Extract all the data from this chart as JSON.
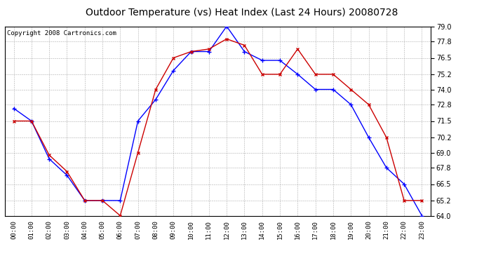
{
  "title": "Outdoor Temperature (vs) Heat Index (Last 24 Hours) 20080728",
  "copyright": "Copyright 2008 Cartronics.com",
  "hours": [
    "00:00",
    "01:00",
    "02:00",
    "03:00",
    "04:00",
    "05:00",
    "06:00",
    "07:00",
    "08:00",
    "09:00",
    "10:00",
    "11:00",
    "12:00",
    "13:00",
    "14:00",
    "15:00",
    "16:00",
    "17:00",
    "18:00",
    "19:00",
    "20:00",
    "21:00",
    "22:00",
    "23:00"
  ],
  "blue_temp": [
    72.5,
    71.5,
    68.5,
    67.2,
    65.2,
    65.2,
    65.2,
    71.5,
    73.2,
    75.5,
    77.0,
    77.0,
    79.0,
    77.0,
    76.3,
    76.3,
    75.2,
    74.0,
    74.0,
    72.8,
    70.2,
    67.8,
    66.5,
    64.0
  ],
  "red_heat": [
    71.5,
    71.5,
    68.8,
    67.5,
    65.2,
    65.2,
    64.0,
    69.0,
    74.0,
    76.5,
    77.0,
    77.2,
    78.0,
    77.5,
    75.2,
    75.2,
    77.2,
    75.2,
    75.2,
    74.0,
    72.8,
    70.2,
    65.2,
    65.2
  ],
  "ylim_min": 64.0,
  "ylim_max": 79.0,
  "yticks": [
    64.0,
    65.2,
    66.5,
    67.8,
    69.0,
    70.2,
    71.5,
    72.8,
    74.0,
    75.2,
    76.5,
    77.8,
    79.0
  ],
  "blue_color": "#0000FF",
  "red_color": "#CC0000",
  "background_color": "#FFFFFF",
  "grid_color": "#999999",
  "title_fontsize": 10,
  "copyright_fontsize": 6.5
}
